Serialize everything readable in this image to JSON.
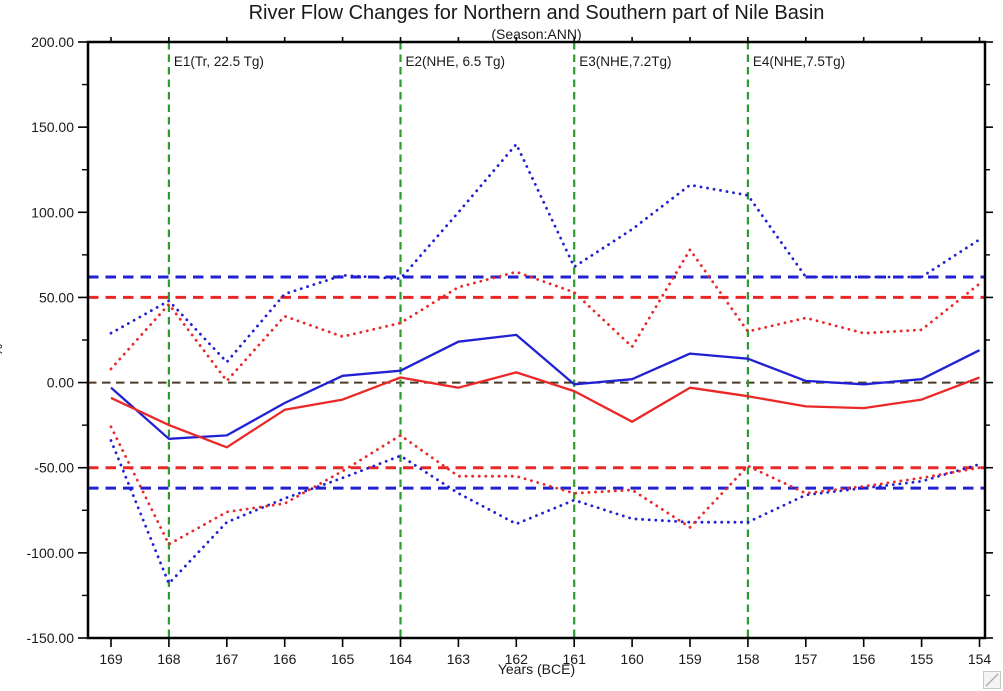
{
  "header": {
    "title": "River Flow Changes for Northern and Southern part of Nile Basin",
    "subtitle": "(Season:ANN)"
  },
  "colors": {
    "blue": "#2121d3",
    "red": "#ea2828",
    "green": "#2e9b2e",
    "zero_line": "#4b3a26",
    "axis": "#000000",
    "text": "#1a1a1a"
  },
  "chart_data": {
    "type": "line",
    "title": "River Flow Changes for Northern and Southern part of Nile Basin",
    "subtitle": "(Season:ANN)",
    "xlabel": "Years (BCE)",
    "ylabel": "%",
    "x": [
      169,
      168,
      167,
      166,
      165,
      164,
      163,
      162,
      161,
      160,
      159,
      158,
      157,
      156,
      155,
      154
    ],
    "x_direction": "decreasing",
    "ylim": [
      -150,
      200
    ],
    "ytick_values": [
      200,
      150,
      100,
      50,
      0,
      -50,
      -100,
      -150
    ],
    "ytick_labels": [
      "200.00",
      "150.00",
      "100.00",
      "50.00",
      "0.00",
      "-50.00",
      "-100.00",
      "-150.00"
    ],
    "yminor_step": 25,
    "grid": false,
    "legend": "none",
    "series": [
      {
        "name": "blue-dotted-upper-envelope",
        "color": "blue",
        "line_style": "dotted",
        "values": [
          29,
          48,
          12,
          52,
          63,
          61,
          100,
          140,
          68,
          90,
          116,
          110,
          62,
          62,
          62,
          84
        ]
      },
      {
        "name": "red-dotted-upper-envelope",
        "color": "red",
        "line_style": "dotted",
        "values": [
          8,
          46,
          1,
          39,
          27,
          35,
          56,
          65,
          53,
          21,
          78,
          30,
          38,
          29,
          31,
          58
        ]
      },
      {
        "name": "blue-dotted-lower-envelope",
        "color": "blue",
        "line_style": "dotted",
        "values": [
          -34,
          -118,
          -82,
          -68,
          -56,
          -43,
          -65,
          -83,
          -69,
          -80,
          -82,
          -82,
          -66,
          -62,
          -58,
          -48
        ]
      },
      {
        "name": "red-dotted-lower-envelope",
        "color": "red",
        "line_style": "dotted",
        "values": [
          -26,
          -95,
          -76,
          -71,
          -52,
          -31,
          -55,
          -55,
          -65,
          -63,
          -85,
          -49,
          -65,
          -61,
          -56,
          -50
        ]
      },
      {
        "name": "blue-solid-mean",
        "color": "blue",
        "line_style": "solid",
        "values": [
          -3,
          -33,
          -31,
          -12,
          4,
          7,
          24,
          28,
          -1,
          2,
          17,
          14,
          1,
          -1,
          2,
          19
        ]
      },
      {
        "name": "red-solid-mean",
        "color": "red",
        "line_style": "solid",
        "values": [
          -9,
          -25,
          -38,
          -16,
          -10,
          3,
          -3,
          6,
          -5,
          -23,
          -3,
          -8,
          -14,
          -15,
          -10,
          3
        ]
      }
    ],
    "ref_lines": [
      {
        "value": 62,
        "color": "blue",
        "style": "dashed"
      },
      {
        "value": 50,
        "color": "red",
        "style": "dashed"
      },
      {
        "value": 0,
        "color": "zero_line",
        "style": "dashed"
      },
      {
        "value": -50,
        "color": "red",
        "style": "dashed"
      },
      {
        "value": -62,
        "color": "blue",
        "style": "dashed"
      }
    ],
    "event_lines": [
      {
        "x": 168,
        "label": "E1(Tr, 22.5 Tg)",
        "color": "green",
        "style": "dashed"
      },
      {
        "x": 164,
        "label": "E2(NHE, 6.5 Tg)",
        "color": "green",
        "style": "dashed"
      },
      {
        "x": 161,
        "label": "E3(NHE,7.2Tg)",
        "color": "green",
        "style": "dashed"
      },
      {
        "x": 158,
        "label": "E4(NHE,7.5Tg)",
        "color": "green",
        "style": "dashed"
      }
    ]
  },
  "icons": {
    "bottom_right": "resize-handle-icon"
  }
}
